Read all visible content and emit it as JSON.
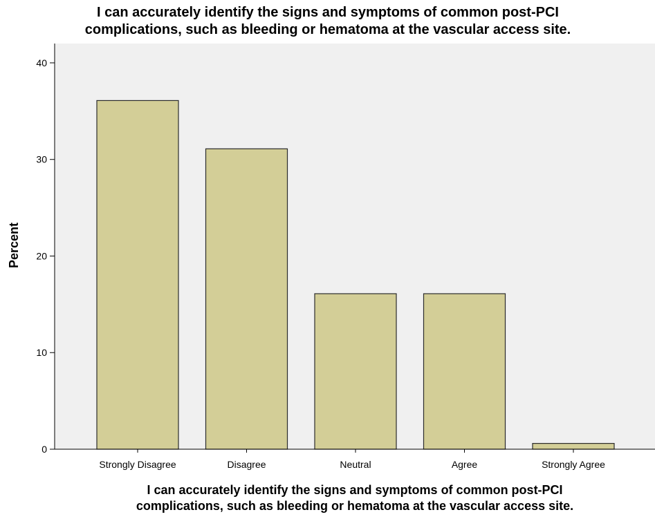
{
  "chart_data": {
    "type": "bar",
    "title_lines": [
      "I can accurately identify the signs and symptoms of common post-PCI",
      "complications, such as bleeding or hematoma at the vascular access site."
    ],
    "xlabel_lines": [
      "I can accurately identify the signs and symptoms of common post-PCI",
      "complications, such as bleeding or hematoma at the vascular access site."
    ],
    "ylabel": "Percent",
    "categories": [
      "Strongly Disagree",
      "Disagree",
      "Neutral",
      "Agree",
      "Strongly Agree"
    ],
    "values": [
      36.1,
      31.1,
      16.1,
      16.1,
      0.6
    ],
    "ylim": [
      0,
      42
    ],
    "yticks": [
      0,
      10,
      20,
      30,
      40
    ],
    "grid": false,
    "colors": {
      "plot_background": "#f0f0f0",
      "bar_fill": "#d3ce97",
      "bar_stroke": "#2b2b2b",
      "axis": "#000000"
    }
  }
}
